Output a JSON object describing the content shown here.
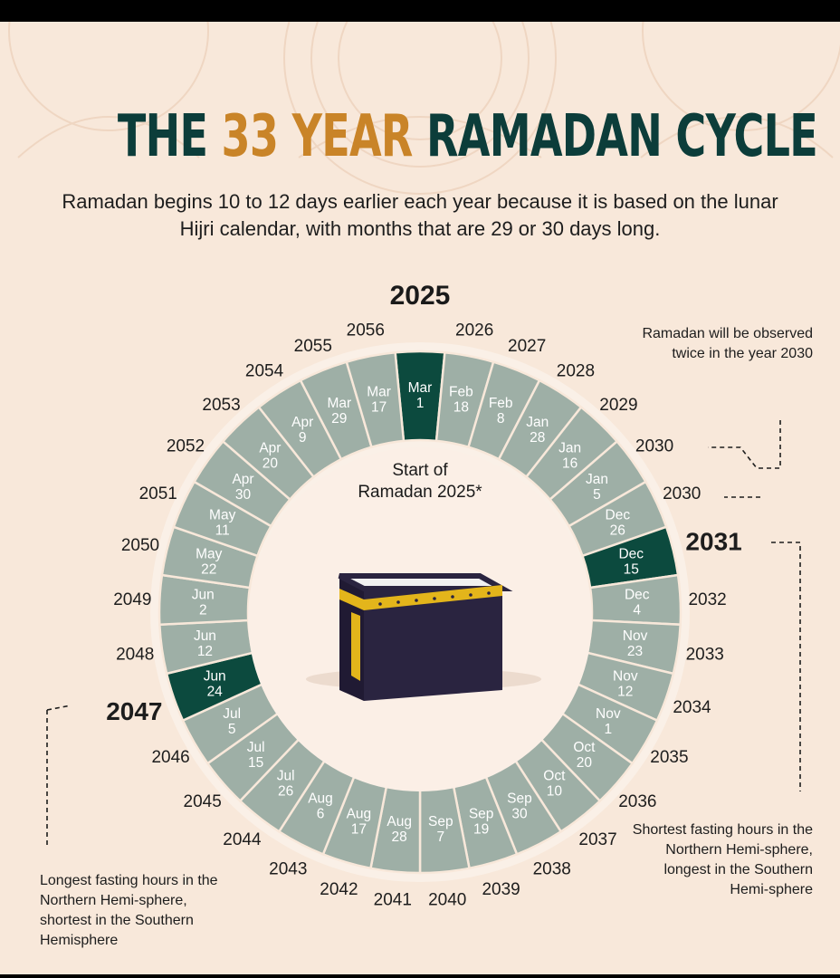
{
  "title": {
    "prefix": "THE",
    "accent": "33 YEAR",
    "suffix": "RAMADAN CYCLE"
  },
  "subtitle": "Ramadan begins 10 to 12 days earlier each year because it is based on the lunar Hijri calendar, with months that are 29 or 30 days long.",
  "center_label": "Start of\nRamadan 2025*",
  "notes": {
    "twice_2030": "Ramadan will be observed twice in the year 2030",
    "shortest": "Shortest fasting hours in the Northern Hemi-sphere, longest in the Southern Hemi-sphere",
    "longest": "Longest fasting hours in the Northern Hemi-sphere, shortest in the Southern Hemisphere"
  },
  "colors": {
    "background": "#f8e8da",
    "title_dark": "#0c3d3a",
    "title_accent": "#c98428",
    "segment": "#9eafa6",
    "segment_highlight": "#0c4a3e",
    "kaaba_body": "#2a2440",
    "kaaba_gold": "#e3b51b"
  },
  "icons": {
    "center": "kaaba-icon"
  },
  "segments": [
    {
      "year": "2025",
      "month": "Mar",
      "day": "1",
      "highlight": true,
      "big": false
    },
    {
      "year": "2026",
      "month": "Feb",
      "day": "18",
      "highlight": false,
      "big": false
    },
    {
      "year": "2027",
      "month": "Feb",
      "day": "8",
      "highlight": false,
      "big": false
    },
    {
      "year": "2028",
      "month": "Jan",
      "day": "28",
      "highlight": false,
      "big": false
    },
    {
      "year": "2029",
      "month": "Jan",
      "day": "16",
      "highlight": false,
      "big": false
    },
    {
      "year": "2030",
      "month": "Jan",
      "day": "5",
      "highlight": false,
      "big": false
    },
    {
      "year": "2030",
      "month": "Dec",
      "day": "26",
      "highlight": false,
      "big": false
    },
    {
      "year": "2031",
      "month": "Dec",
      "day": "15",
      "highlight": true,
      "big": true
    },
    {
      "year": "2032",
      "month": "Dec",
      "day": "4",
      "highlight": false,
      "big": false
    },
    {
      "year": "2033",
      "month": "Nov",
      "day": "23",
      "highlight": false,
      "big": false
    },
    {
      "year": "2034",
      "month": "Nov",
      "day": "12",
      "highlight": false,
      "big": false
    },
    {
      "year": "2035",
      "month": "Nov",
      "day": "1",
      "highlight": false,
      "big": false
    },
    {
      "year": "2036",
      "month": "Oct",
      "day": "20",
      "highlight": false,
      "big": false
    },
    {
      "year": "2037",
      "month": "Oct",
      "day": "10",
      "highlight": false,
      "big": false
    },
    {
      "year": "2038",
      "month": "Sep",
      "day": "30",
      "highlight": false,
      "big": false
    },
    {
      "year": "2039",
      "month": "Sep",
      "day": "19",
      "highlight": false,
      "big": false
    },
    {
      "year": "2040",
      "month": "Sep",
      "day": "7",
      "highlight": false,
      "big": false
    },
    {
      "year": "2041",
      "month": "Aug",
      "day": "28",
      "highlight": false,
      "big": false
    },
    {
      "year": "2042",
      "month": "Aug",
      "day": "17",
      "highlight": false,
      "big": false
    },
    {
      "year": "2043",
      "month": "Aug",
      "day": "6",
      "highlight": false,
      "big": false
    },
    {
      "year": "2044",
      "month": "Jul",
      "day": "26",
      "highlight": false,
      "big": false
    },
    {
      "year": "2045",
      "month": "Jul",
      "day": "15",
      "highlight": false,
      "big": false
    },
    {
      "year": "2046",
      "month": "Jul",
      "day": "5",
      "highlight": false,
      "big": false
    },
    {
      "year": "2047",
      "month": "Jun",
      "day": "24",
      "highlight": true,
      "big": true
    },
    {
      "year": "2048",
      "month": "Jun",
      "day": "12",
      "highlight": false,
      "big": false
    },
    {
      "year": "2049",
      "month": "Jun",
      "day": "2",
      "highlight": false,
      "big": false
    },
    {
      "year": "2050",
      "month": "May",
      "day": "22",
      "highlight": false,
      "big": false
    },
    {
      "year": "2051",
      "month": "May",
      "day": "11",
      "highlight": false,
      "big": false
    },
    {
      "year": "2052",
      "month": "Apr",
      "day": "30",
      "highlight": false,
      "big": false
    },
    {
      "year": "2053",
      "month": "Apr",
      "day": "20",
      "highlight": false,
      "big": false
    },
    {
      "year": "2054",
      "month": "Apr",
      "day": "9",
      "highlight": false,
      "big": false
    },
    {
      "year": "2055",
      "month": "Mar",
      "day": "29",
      "highlight": false,
      "big": false
    },
    {
      "year": "2056",
      "month": "Mar",
      "day": "17",
      "highlight": false,
      "big": false
    }
  ]
}
